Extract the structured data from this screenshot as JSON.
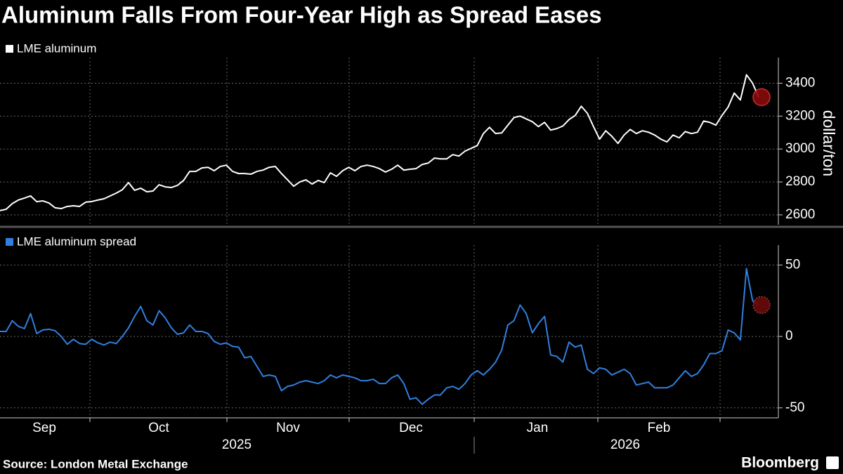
{
  "title": "Aluminum Falls From Four-Year High as Spread Eases",
  "source": "Source: London Metal Exchange",
  "brand": "Bloomberg",
  "x_axis": {
    "months": [
      "Sep",
      "Oct",
      "Nov",
      "Dec",
      "Jan",
      "Feb"
    ],
    "years": [
      "2025",
      "2026"
    ]
  },
  "chart_data": [
    {
      "type": "line",
      "y_label": "dollar/ton",
      "series": [
        {
          "name": "LME aluminum",
          "color": "#ffffff",
          "values": [
            2626,
            2634,
            2668,
            2690,
            2702,
            2715,
            2680,
            2685,
            2672,
            2643,
            2638,
            2651,
            2655,
            2651,
            2677,
            2681,
            2690,
            2698,
            2715,
            2732,
            2753,
            2796,
            2749,
            2762,
            2740,
            2745,
            2783,
            2770,
            2766,
            2779,
            2809,
            2864,
            2864,
            2885,
            2889,
            2868,
            2894,
            2902,
            2864,
            2851,
            2851,
            2847,
            2864,
            2872,
            2889,
            2894,
            2851,
            2813,
            2774,
            2800,
            2813,
            2787,
            2809,
            2796,
            2855,
            2834,
            2868,
            2889,
            2868,
            2894,
            2902,
            2894,
            2881,
            2860,
            2877,
            2902,
            2872,
            2877,
            2881,
            2906,
            2915,
            2945,
            2940,
            2940,
            2966,
            2957,
            2987,
            3004,
            3021,
            3094,
            3132,
            3094,
            3098,
            3145,
            3191,
            3200,
            3183,
            3166,
            3136,
            3162,
            3115,
            3124,
            3140,
            3179,
            3204,
            3260,
            3217,
            3136,
            3060,
            3111,
            3077,
            3034,
            3085,
            3119,
            3094,
            3111,
            3102,
            3085,
            3060,
            3043,
            3085,
            3068,
            3106,
            3094,
            3102,
            3170,
            3162,
            3145,
            3204,
            3255,
            3340,
            3298,
            3451,
            3400,
            3315
          ]
        }
      ],
      "ylim": [
        2540,
        3530
      ],
      "yticks": [
        2600,
        2800,
        3000,
        3200,
        3400
      ],
      "grid": true
    },
    {
      "type": "line",
      "series": [
        {
          "name": "LME aluminum spread",
          "color": "#2f80e0",
          "values": [
            3.5,
            3.5,
            11,
            7,
            5.5,
            16,
            2,
            4.5,
            5,
            4,
            0,
            -5.5,
            -2,
            -5,
            -5.5,
            -2,
            -4.5,
            -6,
            -4,
            -5,
            0,
            6,
            14,
            21,
            11,
            8,
            18,
            13,
            6,
            1.5,
            2.5,
            8,
            3.5,
            3.5,
            2,
            -3.5,
            -5.5,
            -4.5,
            -7,
            -7.5,
            -15,
            -14,
            -21,
            -28,
            -27,
            -28,
            -38,
            -35,
            -34,
            -32,
            -31,
            -32,
            -33,
            -31,
            -27,
            -29,
            -27,
            -28,
            -29,
            -31,
            -31,
            -30,
            -33,
            -33,
            -29,
            -27,
            -33,
            -44,
            -43,
            -47.5,
            -44,
            -41,
            -41,
            -36,
            -35,
            -37,
            -33,
            -27,
            -24,
            -27,
            -23,
            -18,
            -9.5,
            8,
            11,
            22,
            16,
            2.5,
            9,
            14,
            -13,
            -14,
            -18,
            -4,
            -7.5,
            -6,
            -23,
            -26,
            -22,
            -23,
            -27,
            -25,
            -23,
            -26,
            -34,
            -33,
            -32,
            -36,
            -36,
            -36,
            -34,
            -29,
            -24,
            -28,
            -26,
            -20,
            -12,
            -12,
            -10,
            4.5,
            2.5,
            -2.5,
            47.5,
            25,
            22
          ]
        }
      ],
      "ylim": [
        -57,
        61
      ],
      "yticks": [
        -50,
        0,
        50
      ],
      "grid": true
    }
  ]
}
